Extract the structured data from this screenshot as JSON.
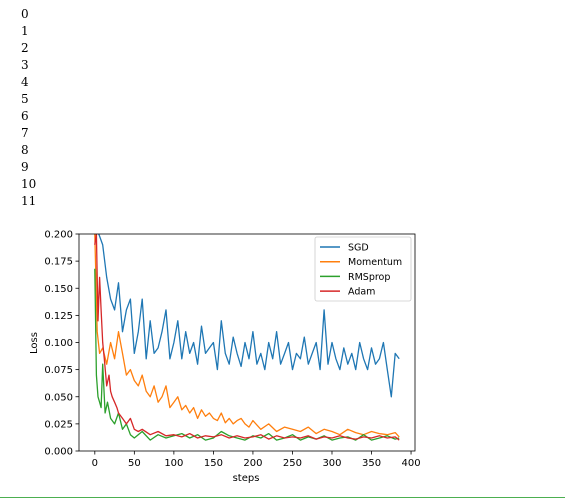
{
  "output_log": {
    "lines": [
      "0",
      "1",
      "2",
      "3",
      "4",
      "5",
      "6",
      "7",
      "8",
      "9",
      "10",
      "11"
    ]
  },
  "chart_data": {
    "type": "line",
    "title": "",
    "xlabel": "steps",
    "ylabel": "Loss",
    "xlim": [
      -20,
      405
    ],
    "ylim": [
      0,
      0.2
    ],
    "xticks": [
      0,
      50,
      100,
      150,
      200,
      250,
      300,
      350,
      400
    ],
    "yticks": [
      0.0,
      0.025,
      0.05,
      0.075,
      0.1,
      0.125,
      0.15,
      0.175,
      0.2
    ],
    "xtick_labels": [
      "0",
      "50",
      "100",
      "150",
      "200",
      "250",
      "300",
      "350",
      "400"
    ],
    "ytick_labels": [
      "0.000",
      "0.025",
      "0.050",
      "0.075",
      "0.100",
      "0.125",
      "0.150",
      "0.175",
      "0.200"
    ],
    "grid": false,
    "legend": "top-right",
    "series": [
      {
        "name": "SGD",
        "color": "#1f77b4",
        "x": [
          0,
          5,
          10,
          15,
          20,
          25,
          30,
          35,
          40,
          45,
          50,
          55,
          60,
          65,
          70,
          75,
          80,
          85,
          90,
          95,
          100,
          105,
          110,
          115,
          120,
          125,
          130,
          135,
          140,
          145,
          150,
          155,
          160,
          165,
          170,
          175,
          180,
          185,
          190,
          195,
          200,
          205,
          210,
          215,
          220,
          225,
          230,
          235,
          240,
          245,
          250,
          255,
          260,
          265,
          270,
          275,
          280,
          285,
          290,
          295,
          300,
          305,
          310,
          315,
          320,
          325,
          330,
          335,
          340,
          345,
          350,
          355,
          360,
          365,
          370,
          375,
          380,
          385
        ],
        "values": [
          0.21,
          0.2,
          0.19,
          0.16,
          0.14,
          0.13,
          0.155,
          0.11,
          0.13,
          0.14,
          0.09,
          0.11,
          0.14,
          0.085,
          0.12,
          0.09,
          0.095,
          0.11,
          0.13,
          0.085,
          0.1,
          0.12,
          0.085,
          0.11,
          0.09,
          0.1,
          0.08,
          0.115,
          0.09,
          0.095,
          0.1,
          0.075,
          0.12,
          0.09,
          0.08,
          0.105,
          0.09,
          0.078,
          0.1,
          0.085,
          0.11,
          0.08,
          0.09,
          0.075,
          0.1,
          0.085,
          0.11,
          0.08,
          0.09,
          0.1,
          0.075,
          0.09,
          0.085,
          0.105,
          0.08,
          0.09,
          0.1,
          0.075,
          0.13,
          0.08,
          0.1,
          0.085,
          0.075,
          0.095,
          0.08,
          0.09,
          0.075,
          0.1,
          0.085,
          0.075,
          0.095,
          0.08,
          0.085,
          0.1,
          0.075,
          0.05,
          0.09,
          0.085
        ]
      },
      {
        "name": "Momentum",
        "color": "#ff7f0e",
        "x": [
          0,
          3,
          6,
          10,
          15,
          20,
          25,
          30,
          35,
          40,
          45,
          50,
          55,
          60,
          65,
          70,
          75,
          80,
          85,
          90,
          95,
          100,
          105,
          110,
          115,
          120,
          125,
          130,
          135,
          140,
          145,
          150,
          155,
          160,
          165,
          170,
          175,
          180,
          185,
          190,
          195,
          200,
          210,
          220,
          230,
          240,
          250,
          260,
          270,
          280,
          290,
          300,
          310,
          320,
          330,
          340,
          350,
          360,
          370,
          380,
          385
        ],
        "values": [
          0.2,
          0.11,
          0.09,
          0.095,
          0.08,
          0.1,
          0.085,
          0.11,
          0.09,
          0.07,
          0.075,
          0.065,
          0.06,
          0.07,
          0.055,
          0.05,
          0.06,
          0.045,
          0.05,
          0.06,
          0.04,
          0.045,
          0.05,
          0.038,
          0.042,
          0.035,
          0.04,
          0.03,
          0.038,
          0.032,
          0.035,
          0.03,
          0.028,
          0.035,
          0.026,
          0.03,
          0.025,
          0.028,
          0.03,
          0.025,
          0.022,
          0.028,
          0.02,
          0.025,
          0.018,
          0.022,
          0.02,
          0.018,
          0.022,
          0.016,
          0.02,
          0.018,
          0.015,
          0.02,
          0.017,
          0.015,
          0.018,
          0.016,
          0.015,
          0.017,
          0.013
        ]
      },
      {
        "name": "RMSprop",
        "color": "#2ca02c",
        "x": [
          0,
          2,
          4,
          6,
          8,
          10,
          13,
          16,
          20,
          25,
          30,
          35,
          40,
          45,
          50,
          60,
          70,
          80,
          90,
          100,
          110,
          120,
          130,
          140,
          150,
          160,
          170,
          180,
          190,
          200,
          210,
          220,
          230,
          240,
          250,
          260,
          270,
          280,
          290,
          300,
          310,
          320,
          330,
          340,
          350,
          360,
          370,
          380,
          385
        ],
        "values": [
          0.168,
          0.07,
          0.05,
          0.045,
          0.04,
          0.08,
          0.035,
          0.045,
          0.03,
          0.025,
          0.035,
          0.02,
          0.025,
          0.015,
          0.012,
          0.018,
          0.01,
          0.015,
          0.012,
          0.014,
          0.016,
          0.012,
          0.015,
          0.01,
          0.012,
          0.018,
          0.014,
          0.012,
          0.01,
          0.014,
          0.012,
          0.016,
          0.01,
          0.012,
          0.015,
          0.01,
          0.013,
          0.011,
          0.014,
          0.01,
          0.012,
          0.013,
          0.01,
          0.015,
          0.01,
          0.012,
          0.014,
          0.011,
          0.012
        ]
      },
      {
        "name": "Adam",
        "color": "#d62728",
        "x": [
          0,
          2,
          4,
          6,
          8,
          10,
          12,
          15,
          18,
          20,
          22,
          25,
          28,
          30,
          35,
          40,
          45,
          50,
          55,
          60,
          70,
          80,
          90,
          100,
          110,
          120,
          130,
          140,
          150,
          160,
          170,
          180,
          190,
          200,
          210,
          220,
          230,
          240,
          250,
          260,
          270,
          280,
          290,
          300,
          310,
          320,
          330,
          340,
          350,
          360,
          370,
          380,
          385
        ],
        "values": [
          0.19,
          0.2,
          0.12,
          0.16,
          0.13,
          0.1,
          0.085,
          0.06,
          0.07,
          0.055,
          0.05,
          0.045,
          0.04,
          0.035,
          0.03,
          0.025,
          0.03,
          0.02,
          0.018,
          0.02,
          0.015,
          0.018,
          0.014,
          0.015,
          0.013,
          0.016,
          0.012,
          0.014,
          0.013,
          0.015,
          0.012,
          0.014,
          0.012,
          0.013,
          0.015,
          0.011,
          0.014,
          0.012,
          0.013,
          0.012,
          0.014,
          0.011,
          0.013,
          0.012,
          0.014,
          0.012,
          0.011,
          0.013,
          0.012,
          0.014,
          0.012,
          0.013,
          0.01
        ]
      }
    ]
  }
}
